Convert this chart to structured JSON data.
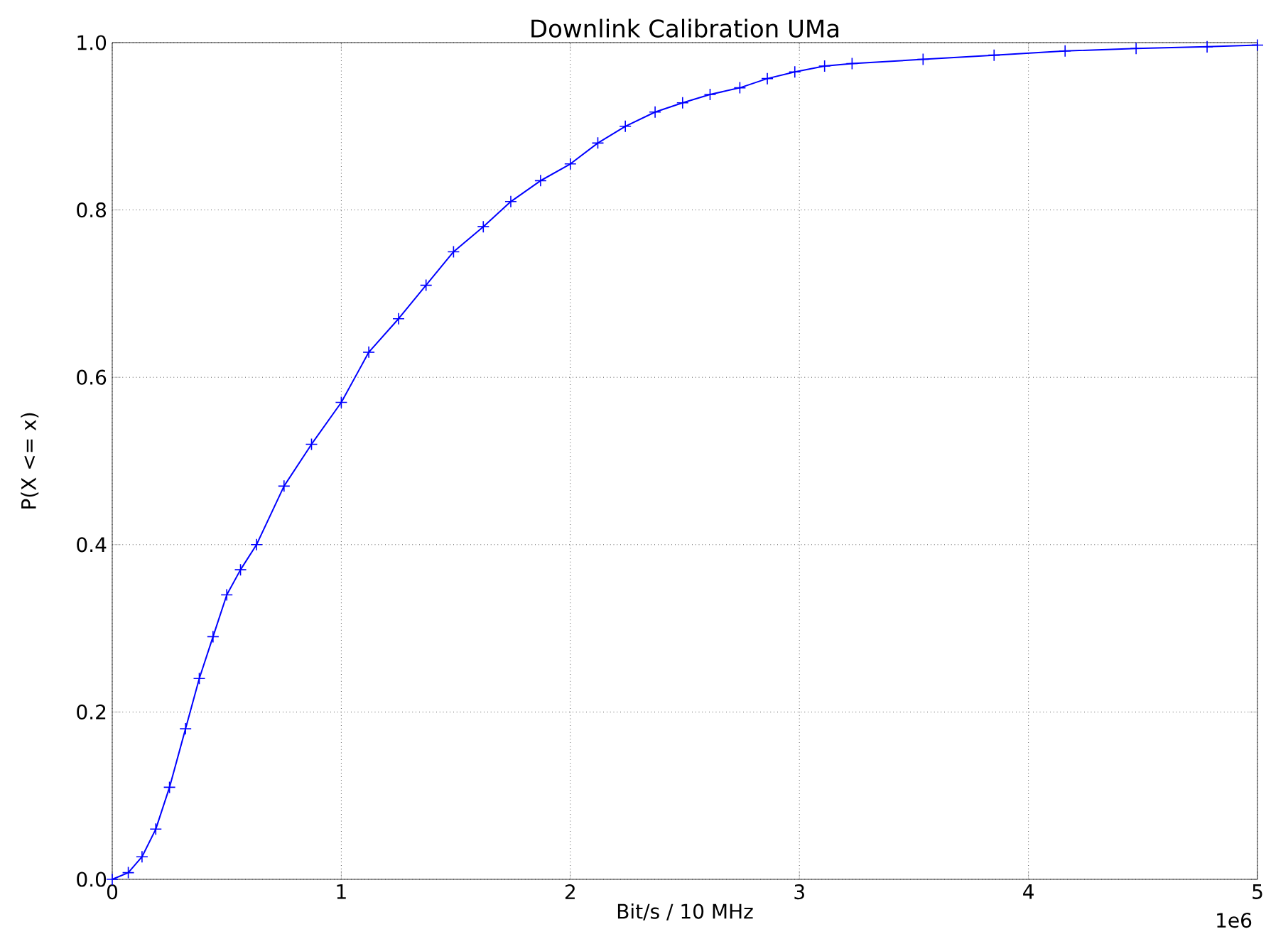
{
  "chart_data": {
    "type": "line",
    "title": "Downlink Calibration UMa",
    "xlabel": "Bit/s / 10 MHz",
    "ylabel": "P(X <= x)",
    "x": [
      0,
      0.07,
      0.13,
      0.19,
      0.25,
      0.32,
      0.38,
      0.44,
      0.5,
      0.56,
      0.63,
      0.75,
      0.87,
      1.0,
      1.12,
      1.25,
      1.37,
      1.49,
      1.62,
      1.74,
      1.87,
      2.0,
      2.12,
      2.24,
      2.37,
      2.49,
      2.61,
      2.74,
      2.86,
      2.98,
      3.11,
      3.23,
      3.54,
      3.85,
      4.16,
      4.47,
      4.78,
      5.0
    ],
    "values": [
      0,
      0.008,
      0.027,
      0.06,
      0.11,
      0.18,
      0.24,
      0.29,
      0.34,
      0.37,
      0.4,
      0.47,
      0.52,
      0.57,
      0.63,
      0.67,
      0.71,
      0.75,
      0.78,
      0.81,
      0.835,
      0.855,
      0.88,
      0.9,
      0.917,
      0.928,
      0.938,
      0.946,
      0.957,
      0.965,
      0.972,
      0.975,
      0.98,
      0.985,
      0.99,
      0.993,
      0.995,
      0.997
    ],
    "color": "#0000ff",
    "marker": "cross",
    "grid": true,
    "xlim": [
      0,
      5
    ],
    "ylim": [
      0,
      1
    ],
    "xticks": [
      0,
      1,
      2,
      3,
      4,
      5
    ],
    "yticks": [
      {
        "value": 0,
        "label": "0.0"
      },
      0.2,
      0.4,
      0.6,
      0.8,
      {
        "value": 1,
        "label": "1.0"
      }
    ],
    "annotations": [
      "1e6"
    ]
  }
}
